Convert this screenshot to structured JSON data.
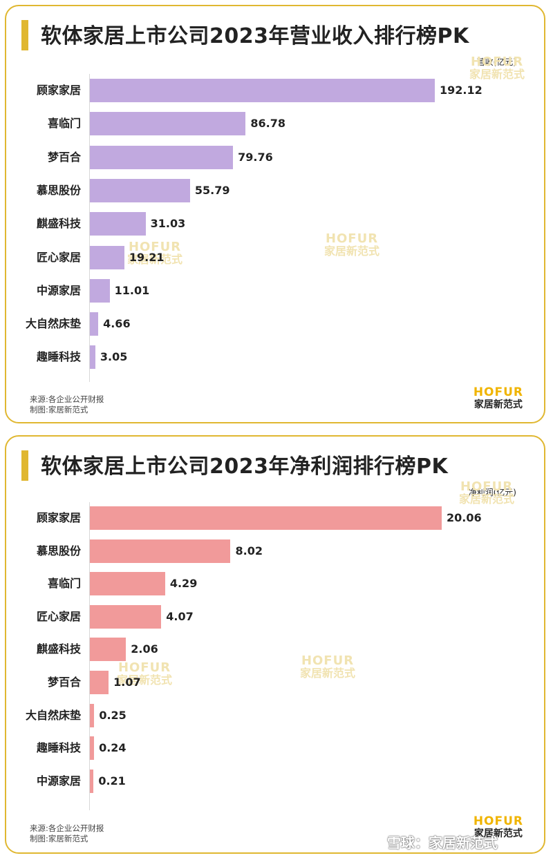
{
  "branding": {
    "watermark_en": "HOFUR",
    "watermark_cn": "家居新范式",
    "corner_watermark": "雪球：家居新范式"
  },
  "colors": {
    "frame": "#e0b730",
    "revenue_bar": "#c1a9df",
    "profit_bar": "#f19a9a",
    "logo_accent": "#f0b400"
  },
  "source_line": "来源:各企业公开财报",
  "maker_line": "制图:家居新范式",
  "chart_data": [
    {
      "type": "bar",
      "orientation": "horizontal",
      "title": "软体家居上市公司2023年营业收入排行榜PK",
      "unit": "营收(亿元)",
      "categories": [
        "顾家家居",
        "喜临门",
        "梦百合",
        "慕思股份",
        "麒盛科技",
        "匠心家居",
        "中源家居",
        "大自然床垫",
        "趣睡科技"
      ],
      "values": [
        192.12,
        86.78,
        79.76,
        55.79,
        31.03,
        19.21,
        11.01,
        4.66,
        3.05
      ],
      "value_labels": [
        "192.12",
        "86.78",
        "79.76",
        "55.79",
        "31.03",
        "19.21",
        "11.01",
        "4.66",
        "3.05"
      ],
      "xlim": [
        0,
        192.12
      ],
      "grid": false,
      "data_labels": true
    },
    {
      "type": "bar",
      "orientation": "horizontal",
      "title": "软体家居上市公司2023年净利润排行榜PK",
      "unit": "净利润(亿元)",
      "categories": [
        "顾家家居",
        "慕思股份",
        "喜临门",
        "匠心家居",
        "麒盛科技",
        "梦百合",
        "大自然床垫",
        "趣睡科技",
        "中源家居"
      ],
      "values": [
        20.06,
        8.02,
        4.29,
        4.07,
        2.06,
        1.07,
        0.25,
        0.24,
        0.21
      ],
      "value_labels": [
        "20.06",
        "8.02",
        "4.29",
        "4.07",
        "2.06",
        "1.07",
        "0.25",
        "0.24",
        "0.21"
      ],
      "xlim": [
        0,
        20.06
      ],
      "grid": false,
      "data_labels": true
    }
  ]
}
